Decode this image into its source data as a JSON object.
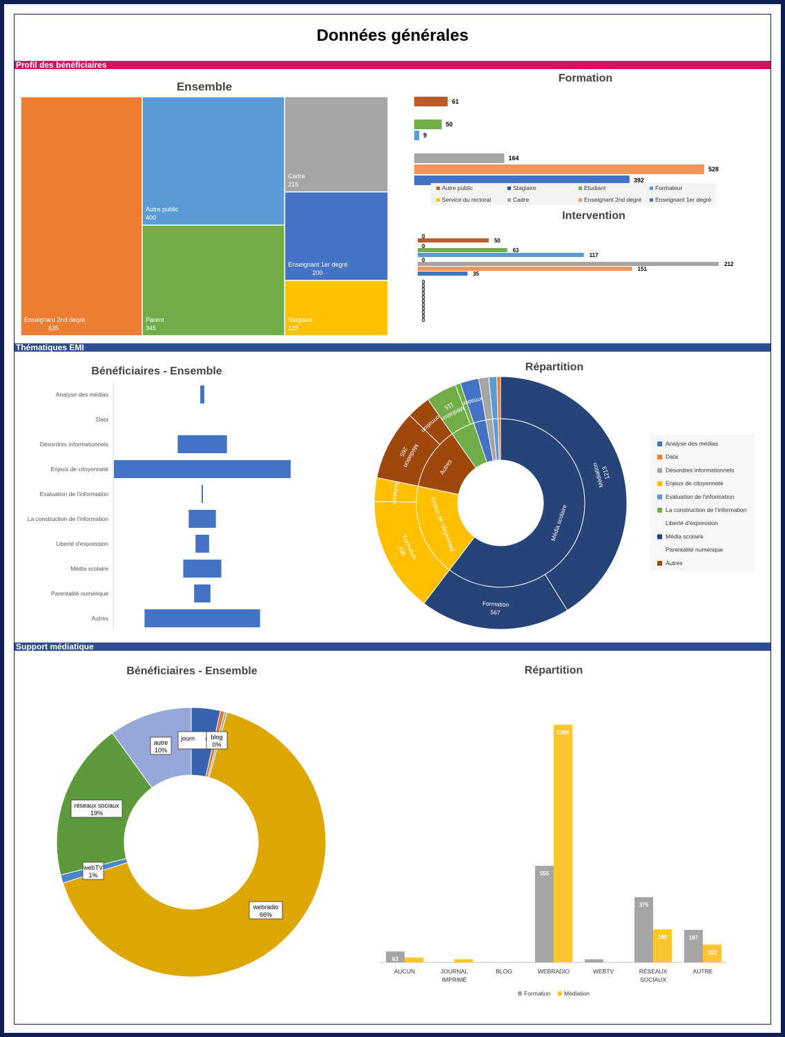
{
  "page_title": "Données générales",
  "sections": {
    "profil": "Profil des bénéficiaires",
    "thematiques": "Thématiques EMI",
    "support": "Support médiatique"
  },
  "colors": {
    "frame": "#0d1f55",
    "band_pink": "#d6105e",
    "band_blue": "#2f4e8f"
  },
  "chart_data": [
    {
      "type": "treemap",
      "title": "Ensemble",
      "items": [
        {
          "label": "Enseignant 2nd degré",
          "value": 635,
          "color": "#ed7d31"
        },
        {
          "label": "Autre public",
          "value": 400,
          "color": "#5b9bd5"
        },
        {
          "label": "Parent",
          "value": 345,
          "color": "#70ad47"
        },
        {
          "label": "Cadre",
          "value": 215,
          "color": "#a5a5a5"
        },
        {
          "label": "Enseignant 1er degré",
          "value": 200,
          "color": "#4472c4"
        },
        {
          "label": "Stagiaire",
          "value": 125,
          "color": "#ffc000"
        }
      ]
    },
    {
      "type": "bar",
      "title": "Formation",
      "orientation": "horizontal",
      "rows": [
        {
          "value": 61,
          "color": "#b85c2a",
          "label": "61"
        },
        {
          "value": 0,
          "color": "#4472c4",
          "label": "0"
        },
        {
          "value": 50,
          "color": "#70ad47",
          "label": "50"
        },
        {
          "value": 9,
          "color": "#5b9bd5",
          "label": "9"
        },
        {
          "value": 0,
          "color": "#ffc000",
          "label": "0"
        },
        {
          "value": 164,
          "color": "#a5a5a5",
          "label": "164"
        },
        {
          "value": 528,
          "color": "#f0955b",
          "label": "528"
        },
        {
          "value": 392,
          "color": "#4472c4",
          "label": "392"
        }
      ],
      "legend": [
        {
          "name": "Autre public",
          "color": "#b85c2a"
        },
        {
          "name": "Stagiaire",
          "color": "#2f4e8f"
        },
        {
          "name": "Etudiant",
          "color": "#70ad47"
        },
        {
          "name": "Formateur",
          "color": "#5b9bd5"
        },
        {
          "name": "Service du rectorat",
          "color": "#ffc000"
        },
        {
          "name": "Cadre",
          "color": "#a5a5a5"
        },
        {
          "name": "Enseignant 2nd degré",
          "color": "#f0955b"
        },
        {
          "name": "Enseignant 1er degré",
          "color": "#4472c4"
        }
      ]
    },
    {
      "type": "bar",
      "title": "Intervention",
      "orientation": "horizontal",
      "rows": [
        {
          "value": 0,
          "color": "#4472c4",
          "label": "0"
        },
        {
          "value": 50,
          "color": "#b85c2a",
          "label": "50"
        },
        {
          "value": 0,
          "color": "#4472c4",
          "label": "0"
        },
        {
          "value": 63,
          "color": "#70ad47",
          "label": "63"
        },
        {
          "value": 117,
          "color": "#5b9bd5",
          "label": "117"
        },
        {
          "value": 0,
          "color": "#ffc000",
          "label": "0"
        },
        {
          "value": 212,
          "color": "#a5a5a5",
          "label": "212"
        },
        {
          "value": 151,
          "color": "#f0955b",
          "label": "151"
        },
        {
          "value": 35,
          "color": "#4472c4",
          "label": "35"
        }
      ],
      "zero_labels": [
        "0",
        "0",
        "0",
        "0",
        "0",
        "0",
        "0",
        "0",
        "0",
        "0",
        "0"
      ]
    },
    {
      "type": "bar",
      "title": "Bénéficiaires - Ensemble",
      "orientation": "horizontal-funnel",
      "categories": [
        "Analyse des médias",
        "Data",
        "Désordres informationnels",
        "Enjeux de citoyenneté",
        "Evaluation de l'information",
        "La construction de l'information",
        "Liberté d'expression",
        "Média scolaire",
        "Parentalité numérique",
        "Autres"
      ],
      "values": [
        12,
        0,
        145,
        520,
        4,
        80,
        40,
        112,
        48,
        340
      ],
      "color": "#4472c4"
    },
    {
      "type": "sunburst",
      "title": "Répartition",
      "outer": [
        {
          "label": "Médiation",
          "value": 1213,
          "color": "#264478",
          "show": "Médiation|1213"
        },
        {
          "label": "Formation",
          "value": 567,
          "color": "#264478",
          "show": "Formation|567"
        },
        {
          "label": "Formation",
          "value": 436,
          "color": "#ffc000",
          "show": "Formation|436"
        },
        {
          "label": "Médiation",
          "value": 90,
          "color": "#ffc000",
          "show": "Médiation"
        },
        {
          "label": "Médiation",
          "value": 265,
          "color": "#9e480e",
          "show": "Médiation|265"
        },
        {
          "label": "Formation",
          "value": 90,
          "color": "#9e480e",
          "show": "Formation"
        },
        {
          "label": "Médiation",
          "value": 115,
          "color": "#70ad47",
          "show": "Médiation|115"
        },
        {
          "label": "",
          "value": 20,
          "color": "#70ad47",
          "show": ""
        },
        {
          "label": "Formation",
          "value": 70,
          "color": "#4472c4",
          "show": "Formation"
        },
        {
          "label": "",
          "value": 38,
          "color": "#a5a5a5",
          "show": ""
        },
        {
          "label": "",
          "value": 30,
          "color": "#5b9bd5",
          "show": ""
        },
        {
          "label": "",
          "value": 14,
          "color": "#ed7d31",
          "show": ""
        }
      ],
      "inner": [
        {
          "label": "Média scolaire",
          "value": 1780,
          "color": "#264478"
        },
        {
          "label": "Enjeux de citoyenneté",
          "value": 526,
          "color": "#ffc000"
        },
        {
          "label": "Autres",
          "value": 355,
          "color": "#9e480e"
        },
        {
          "label": "",
          "value": 135,
          "color": "#70ad47"
        },
        {
          "label": "",
          "value": 70,
          "color": "#4472c4"
        },
        {
          "label": "",
          "value": 38,
          "color": "#a5a5a5"
        },
        {
          "label": "",
          "value": 30,
          "color": "#5b9bd5"
        },
        {
          "label": "",
          "value": 14,
          "color": "#ed7d31"
        }
      ],
      "legend": [
        {
          "name": "Analyse des médias",
          "color": "#4472c4"
        },
        {
          "name": "Data",
          "color": "#ed7d31"
        },
        {
          "name": "Désordres informationnels",
          "color": "#a5a5a5"
        },
        {
          "name": "Enjeux de citoyenneté",
          "color": "#ffc000"
        },
        {
          "name": "Evaluation de l'information",
          "color": "#5b9bd5"
        },
        {
          "name": "La construction de l'information",
          "color": "#70ad47"
        },
        {
          "name": "Liberté d'expression",
          "color": ""
        },
        {
          "name": "Média scolaire",
          "color": "#264478"
        },
        {
          "name": "Parentalité numérique",
          "color": ""
        },
        {
          "name": "Autres",
          "color": "#9e480e"
        }
      ]
    },
    {
      "type": "pie",
      "title": "Bénéficiaires - Ensemble",
      "slices": [
        {
          "name": "aucun",
          "value": 3.5,
          "color": "#3a63ad",
          "label": ""
        },
        {
          "name": "journal imprimé",
          "value": 0.5,
          "color": "#e0792e",
          "label": "journ|rimé"
        },
        {
          "name": "blog",
          "value": 0.3,
          "color": "#a5a5a5",
          "label": "blog|0%"
        },
        {
          "name": "webradio",
          "value": 66,
          "color": "#dda600",
          "label": "webradio|66%"
        },
        {
          "name": "webTV",
          "value": 1,
          "color": "#4a86c8",
          "label": "webTV|1%"
        },
        {
          "name": "réseaux sociaux",
          "value": 19,
          "color": "#5d9a3b",
          "label": "réseaux sociaux|19%"
        },
        {
          "name": "autre",
          "value": 10,
          "color": "#97a8d8",
          "label": "autre|10%"
        }
      ]
    },
    {
      "type": "bar",
      "title": "Répartition",
      "categories": [
        "AUCUN",
        "JOURNAL IMPRIMÉ",
        "BLOG",
        "WEBRADIO",
        "WEBTV",
        "RÉSEAUX SOCIAUX",
        "AUTRE"
      ],
      "series": [
        {
          "name": "Formation",
          "color": "#a5a5a5",
          "values": [
            63,
            0,
            0,
            555,
            18,
            375,
            187
          ],
          "labels": [
            "63",
            "",
            "",
            "555",
            "",
            "375",
            "187"
          ]
        },
        {
          "name": "Médiation",
          "color": "#ffc531",
          "values": [
            28,
            18,
            0,
            1366,
            0,
            190,
            102
          ],
          "labels": [
            "",
            "",
            "",
            "1366",
            "",
            "190",
            "102"
          ]
        }
      ],
      "ylim": [
        0,
        1400
      ]
    }
  ]
}
